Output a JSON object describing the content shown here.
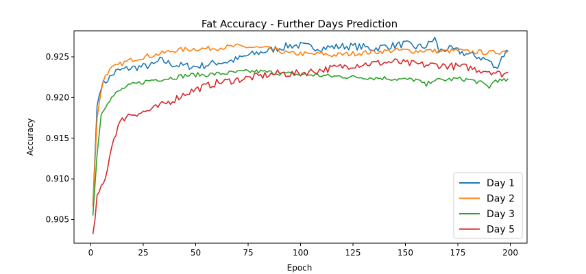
{
  "chart_data": {
    "type": "line",
    "title": "Fat Accuracy - Further Days Prediction",
    "xlabel": "Epoch",
    "ylabel": "Accuracy",
    "xlim": [
      -8,
      208
    ],
    "ylim": [
      0.9021,
      0.9282
    ],
    "xticks": [
      0,
      25,
      50,
      75,
      100,
      125,
      150,
      175,
      200
    ],
    "yticks": [
      0.905,
      0.91,
      0.915,
      0.92,
      0.925
    ],
    "ytick_labels": [
      "0.905",
      "0.910",
      "0.915",
      "0.920",
      "0.925"
    ],
    "grid": false,
    "legend_position": "lower-right",
    "series": [
      {
        "name": "Day 1",
        "color": "#1f77b4",
        "points": [
          [
            1,
            0.9068
          ],
          [
            3,
            0.919
          ],
          [
            5,
            0.9215
          ],
          [
            8,
            0.9222
          ],
          [
            12,
            0.9232
          ],
          [
            18,
            0.9236
          ],
          [
            25,
            0.9238
          ],
          [
            30,
            0.924
          ],
          [
            33,
            0.9246
          ],
          [
            40,
            0.924
          ],
          [
            50,
            0.9238
          ],
          [
            55,
            0.924
          ],
          [
            60,
            0.9243
          ],
          [
            65,
            0.9244
          ],
          [
            70,
            0.9247
          ],
          [
            75,
            0.9252
          ],
          [
            80,
            0.9255
          ],
          [
            85,
            0.9258
          ],
          [
            90,
            0.9261
          ],
          [
            95,
            0.9264
          ],
          [
            100,
            0.9264
          ],
          [
            105,
            0.9262
          ],
          [
            110,
            0.9261
          ],
          [
            115,
            0.9262
          ],
          [
            120,
            0.9263
          ],
          [
            125,
            0.9263
          ],
          [
            130,
            0.9262
          ],
          [
            135,
            0.926
          ],
          [
            140,
            0.9263
          ],
          [
            145,
            0.9264
          ],
          [
            150,
            0.9266
          ],
          [
            155,
            0.9262
          ],
          [
            160,
            0.9263
          ],
          [
            164,
            0.9273
          ],
          [
            166,
            0.9257
          ],
          [
            170,
            0.926
          ],
          [
            175,
            0.9257
          ],
          [
            180,
            0.9253
          ],
          [
            185,
            0.925
          ],
          [
            190,
            0.9245
          ],
          [
            193,
            0.9235
          ],
          [
            196,
            0.925
          ],
          [
            199,
            0.9259
          ]
        ]
      },
      {
        "name": "Day 2",
        "color": "#ff7f0e",
        "points": [
          [
            1,
            0.9066
          ],
          [
            3,
            0.9175
          ],
          [
            5,
            0.921
          ],
          [
            7,
            0.9228
          ],
          [
            10,
            0.9236
          ],
          [
            15,
            0.9242
          ],
          [
            20,
            0.9247
          ],
          [
            25,
            0.925
          ],
          [
            30,
            0.9252
          ],
          [
            35,
            0.9255
          ],
          [
            40,
            0.9258
          ],
          [
            45,
            0.9259
          ],
          [
            50,
            0.926
          ],
          [
            55,
            0.926
          ],
          [
            60,
            0.9261
          ],
          [
            65,
            0.9262
          ],
          [
            70,
            0.9263
          ],
          [
            75,
            0.9262
          ],
          [
            80,
            0.9261
          ],
          [
            85,
            0.926
          ],
          [
            90,
            0.9257
          ],
          [
            95,
            0.9254
          ],
          [
            100,
            0.9254
          ],
          [
            105,
            0.9253
          ],
          [
            110,
            0.9254
          ],
          [
            115,
            0.9252
          ],
          [
            120,
            0.9253
          ],
          [
            125,
            0.9254
          ],
          [
            130,
            0.9255
          ],
          [
            135,
            0.9256
          ],
          [
            140,
            0.9257
          ],
          [
            145,
            0.9258
          ],
          [
            150,
            0.9258
          ],
          [
            155,
            0.9257
          ],
          [
            160,
            0.9258
          ],
          [
            165,
            0.9257
          ],
          [
            170,
            0.9257
          ],
          [
            175,
            0.9258
          ],
          [
            180,
            0.9256
          ],
          [
            185,
            0.9256
          ],
          [
            190,
            0.9255
          ],
          [
            195,
            0.9256
          ],
          [
            199,
            0.9258
          ]
        ]
      },
      {
        "name": "Day 3",
        "color": "#2ca02c",
        "points": [
          [
            1,
            0.9055
          ],
          [
            3,
            0.913
          ],
          [
            5,
            0.918
          ],
          [
            8,
            0.9195
          ],
          [
            12,
            0.9205
          ],
          [
            16,
            0.9212
          ],
          [
            20,
            0.9216
          ],
          [
            25,
            0.9219
          ],
          [
            30,
            0.9222
          ],
          [
            35,
            0.9223
          ],
          [
            40,
            0.9225
          ],
          [
            45,
            0.9227
          ],
          [
            50,
            0.9228
          ],
          [
            55,
            0.9228
          ],
          [
            60,
            0.9229
          ],
          [
            65,
            0.923
          ],
          [
            70,
            0.9231
          ],
          [
            75,
            0.9232
          ],
          [
            80,
            0.9232
          ],
          [
            85,
            0.9231
          ],
          [
            90,
            0.923
          ],
          [
            95,
            0.9229
          ],
          [
            100,
            0.9228
          ],
          [
            105,
            0.9228
          ],
          [
            110,
            0.9227
          ],
          [
            115,
            0.9226
          ],
          [
            120,
            0.9226
          ],
          [
            125,
            0.9225
          ],
          [
            130,
            0.9225
          ],
          [
            135,
            0.9224
          ],
          [
            140,
            0.9224
          ],
          [
            145,
            0.9223
          ],
          [
            150,
            0.9222
          ],
          [
            155,
            0.9222
          ],
          [
            160,
            0.9215
          ],
          [
            163,
            0.9222
          ],
          [
            165,
            0.9221
          ],
          [
            170,
            0.9222
          ],
          [
            175,
            0.9223
          ],
          [
            180,
            0.9222
          ],
          [
            185,
            0.9219
          ],
          [
            190,
            0.9213
          ],
          [
            193,
            0.9222
          ],
          [
            196,
            0.922
          ],
          [
            199,
            0.9222
          ]
        ]
      },
      {
        "name": "Day 5",
        "color": "#d62728",
        "points": [
          [
            1,
            0.9032
          ],
          [
            2,
            0.905
          ],
          [
            3,
            0.908
          ],
          [
            5,
            0.9088
          ],
          [
            7,
            0.91
          ],
          [
            9,
            0.913
          ],
          [
            11,
            0.915
          ],
          [
            13,
            0.9165
          ],
          [
            15,
            0.9172
          ],
          [
            17,
            0.9178
          ],
          [
            20,
            0.918
          ],
          [
            25,
            0.9182
          ],
          [
            30,
            0.9186
          ],
          [
            35,
            0.9192
          ],
          [
            40,
            0.9198
          ],
          [
            45,
            0.9205
          ],
          [
            50,
            0.921
          ],
          [
            55,
            0.9214
          ],
          [
            60,
            0.9218
          ],
          [
            65,
            0.922
          ],
          [
            70,
            0.9222
          ],
          [
            75,
            0.9224
          ],
          [
            80,
            0.9226
          ],
          [
            85,
            0.9228
          ],
          [
            90,
            0.923
          ],
          [
            95,
            0.9229
          ],
          [
            100,
            0.923
          ],
          [
            105,
            0.9232
          ],
          [
            110,
            0.9234
          ],
          [
            115,
            0.9236
          ],
          [
            120,
            0.9238
          ],
          [
            125,
            0.924
          ],
          [
            130,
            0.9241
          ],
          [
            135,
            0.9242
          ],
          [
            140,
            0.9243
          ],
          [
            145,
            0.9244
          ],
          [
            150,
            0.9242
          ],
          [
            155,
            0.9241
          ],
          [
            160,
            0.924
          ],
          [
            165,
            0.924
          ],
          [
            170,
            0.9239
          ],
          [
            175,
            0.9238
          ],
          [
            180,
            0.9237
          ],
          [
            185,
            0.9234
          ],
          [
            190,
            0.9233
          ],
          [
            195,
            0.9229
          ],
          [
            199,
            0.923
          ]
        ]
      }
    ]
  }
}
